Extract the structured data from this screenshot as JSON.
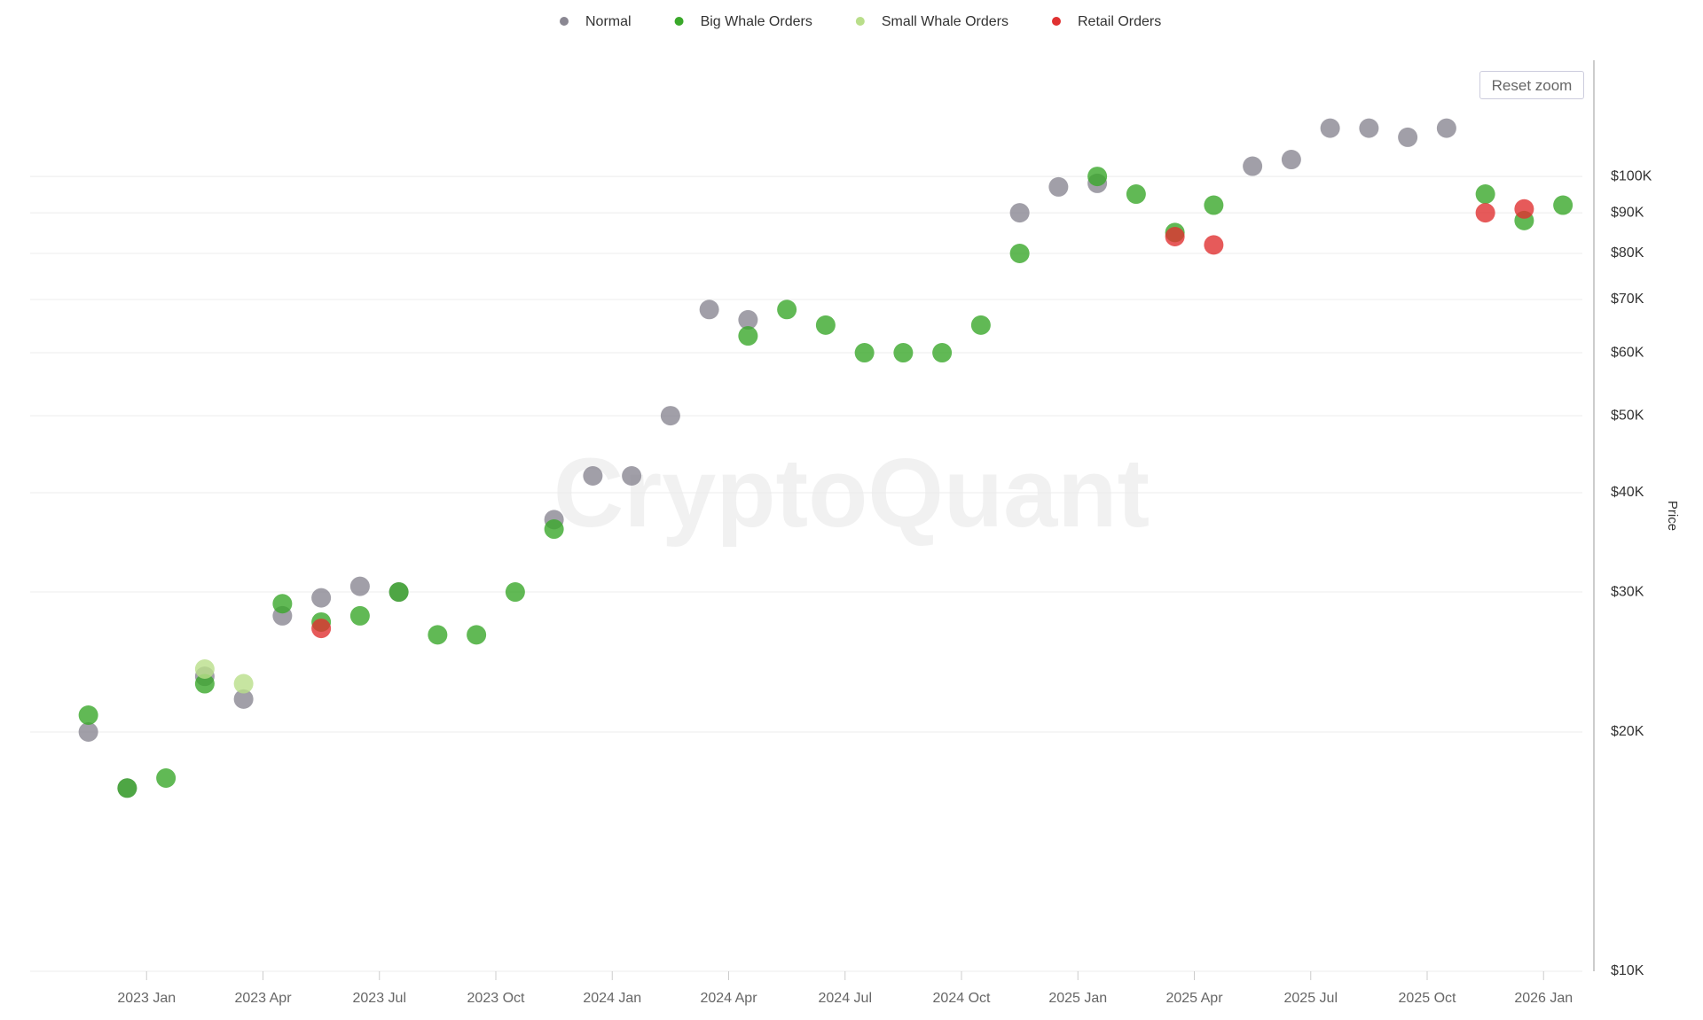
{
  "reset_zoom_button": "Reset zoom",
  "watermark": "CryptoQuant",
  "chart_data": {
    "type": "scatter",
    "y_label": "Price",
    "log_scale": true,
    "grid": true,
    "xlim": [
      "2022-10",
      "2026-02"
    ],
    "xticks": [
      {
        "value": "2023-01",
        "label": "2023 Jan"
      },
      {
        "value": "2023-04",
        "label": "2023 Apr"
      },
      {
        "value": "2023-07",
        "label": "2023 Jul"
      },
      {
        "value": "2023-10",
        "label": "2023 Oct"
      },
      {
        "value": "2024-01",
        "label": "2024 Jan"
      },
      {
        "value": "2024-04",
        "label": "2024 Apr"
      },
      {
        "value": "2024-07",
        "label": "2024 Jul"
      },
      {
        "value": "2024-10",
        "label": "2024 Oct"
      },
      {
        "value": "2025-01",
        "label": "2025 Jan"
      },
      {
        "value": "2025-04",
        "label": "2025 Apr"
      },
      {
        "value": "2025-07",
        "label": "2025 Jul"
      },
      {
        "value": "2025-10",
        "label": "2025 Oct"
      },
      {
        "value": "2026-01",
        "label": "2026 Jan"
      }
    ],
    "ylim": [
      10000,
      140000
    ],
    "yticks": [
      {
        "value": 10000,
        "label": "$10K"
      },
      {
        "value": 20000,
        "label": "$20K"
      },
      {
        "value": 30000,
        "label": "$30K"
      },
      {
        "value": 40000,
        "label": "$40K"
      },
      {
        "value": 50000,
        "label": "$50K"
      },
      {
        "value": 60000,
        "label": "$60K"
      },
      {
        "value": 70000,
        "label": "$70K"
      },
      {
        "value": 80000,
        "label": "$80K"
      },
      {
        "value": 90000,
        "label": "$90K"
      },
      {
        "value": 100000,
        "label": "$100K"
      }
    ],
    "series": [
      {
        "name": "Normal",
        "color": "#8a8792",
        "x": [
          "2022-11",
          "2022-12",
          "2023-02",
          "2023-03",
          "2023-04",
          "2023-05",
          "2023-06",
          "2023-07",
          "2023-11",
          "2023-12",
          "2024-01",
          "2024-02",
          "2024-03",
          "2024-04",
          "2024-11",
          "2024-12",
          "2025-01",
          "2025-05",
          "2025-06",
          "2025-07",
          "2025-08",
          "2025-09",
          "2025-10"
        ],
        "values": [
          20000,
          17000,
          23500,
          22000,
          28000,
          29500,
          30500,
          30000,
          37000,
          42000,
          42000,
          50000,
          68000,
          66000,
          90000,
          97000,
          98000,
          103000,
          105000,
          115000,
          115000,
          112000,
          115000
        ]
      },
      {
        "name": "Big Whale Orders",
        "color": "#3aa82a",
        "x": [
          "2022-11",
          "2022-12",
          "2023-01",
          "2023-02",
          "2023-04",
          "2023-05",
          "2023-06",
          "2023-07",
          "2023-08",
          "2023-09",
          "2023-10",
          "2023-11",
          "2024-04",
          "2024-05",
          "2024-06",
          "2024-07",
          "2024-08",
          "2024-09",
          "2024-10",
          "2024-11",
          "2025-01",
          "2025-02",
          "2025-03",
          "2025-04",
          "2025-11",
          "2025-12",
          "2026-01"
        ],
        "values": [
          21000,
          17000,
          17500,
          23000,
          29000,
          27500,
          28000,
          30000,
          26500,
          26500,
          30000,
          36000,
          63000,
          68000,
          65000,
          60000,
          60000,
          60000,
          65000,
          80000,
          100000,
          95000,
          85000,
          92000,
          95000,
          88000,
          92000
        ]
      },
      {
        "name": "Small Whale Orders",
        "color": "#b9de8a",
        "x": [
          "2023-02",
          "2023-03"
        ],
        "values": [
          24000,
          23000
        ]
      },
      {
        "name": "Retail Orders",
        "color": "#e03131",
        "x": [
          "2023-05",
          "2025-03",
          "2025-04",
          "2025-11",
          "2025-12"
        ],
        "values": [
          27000,
          84000,
          82000,
          90000,
          91000
        ]
      }
    ]
  }
}
